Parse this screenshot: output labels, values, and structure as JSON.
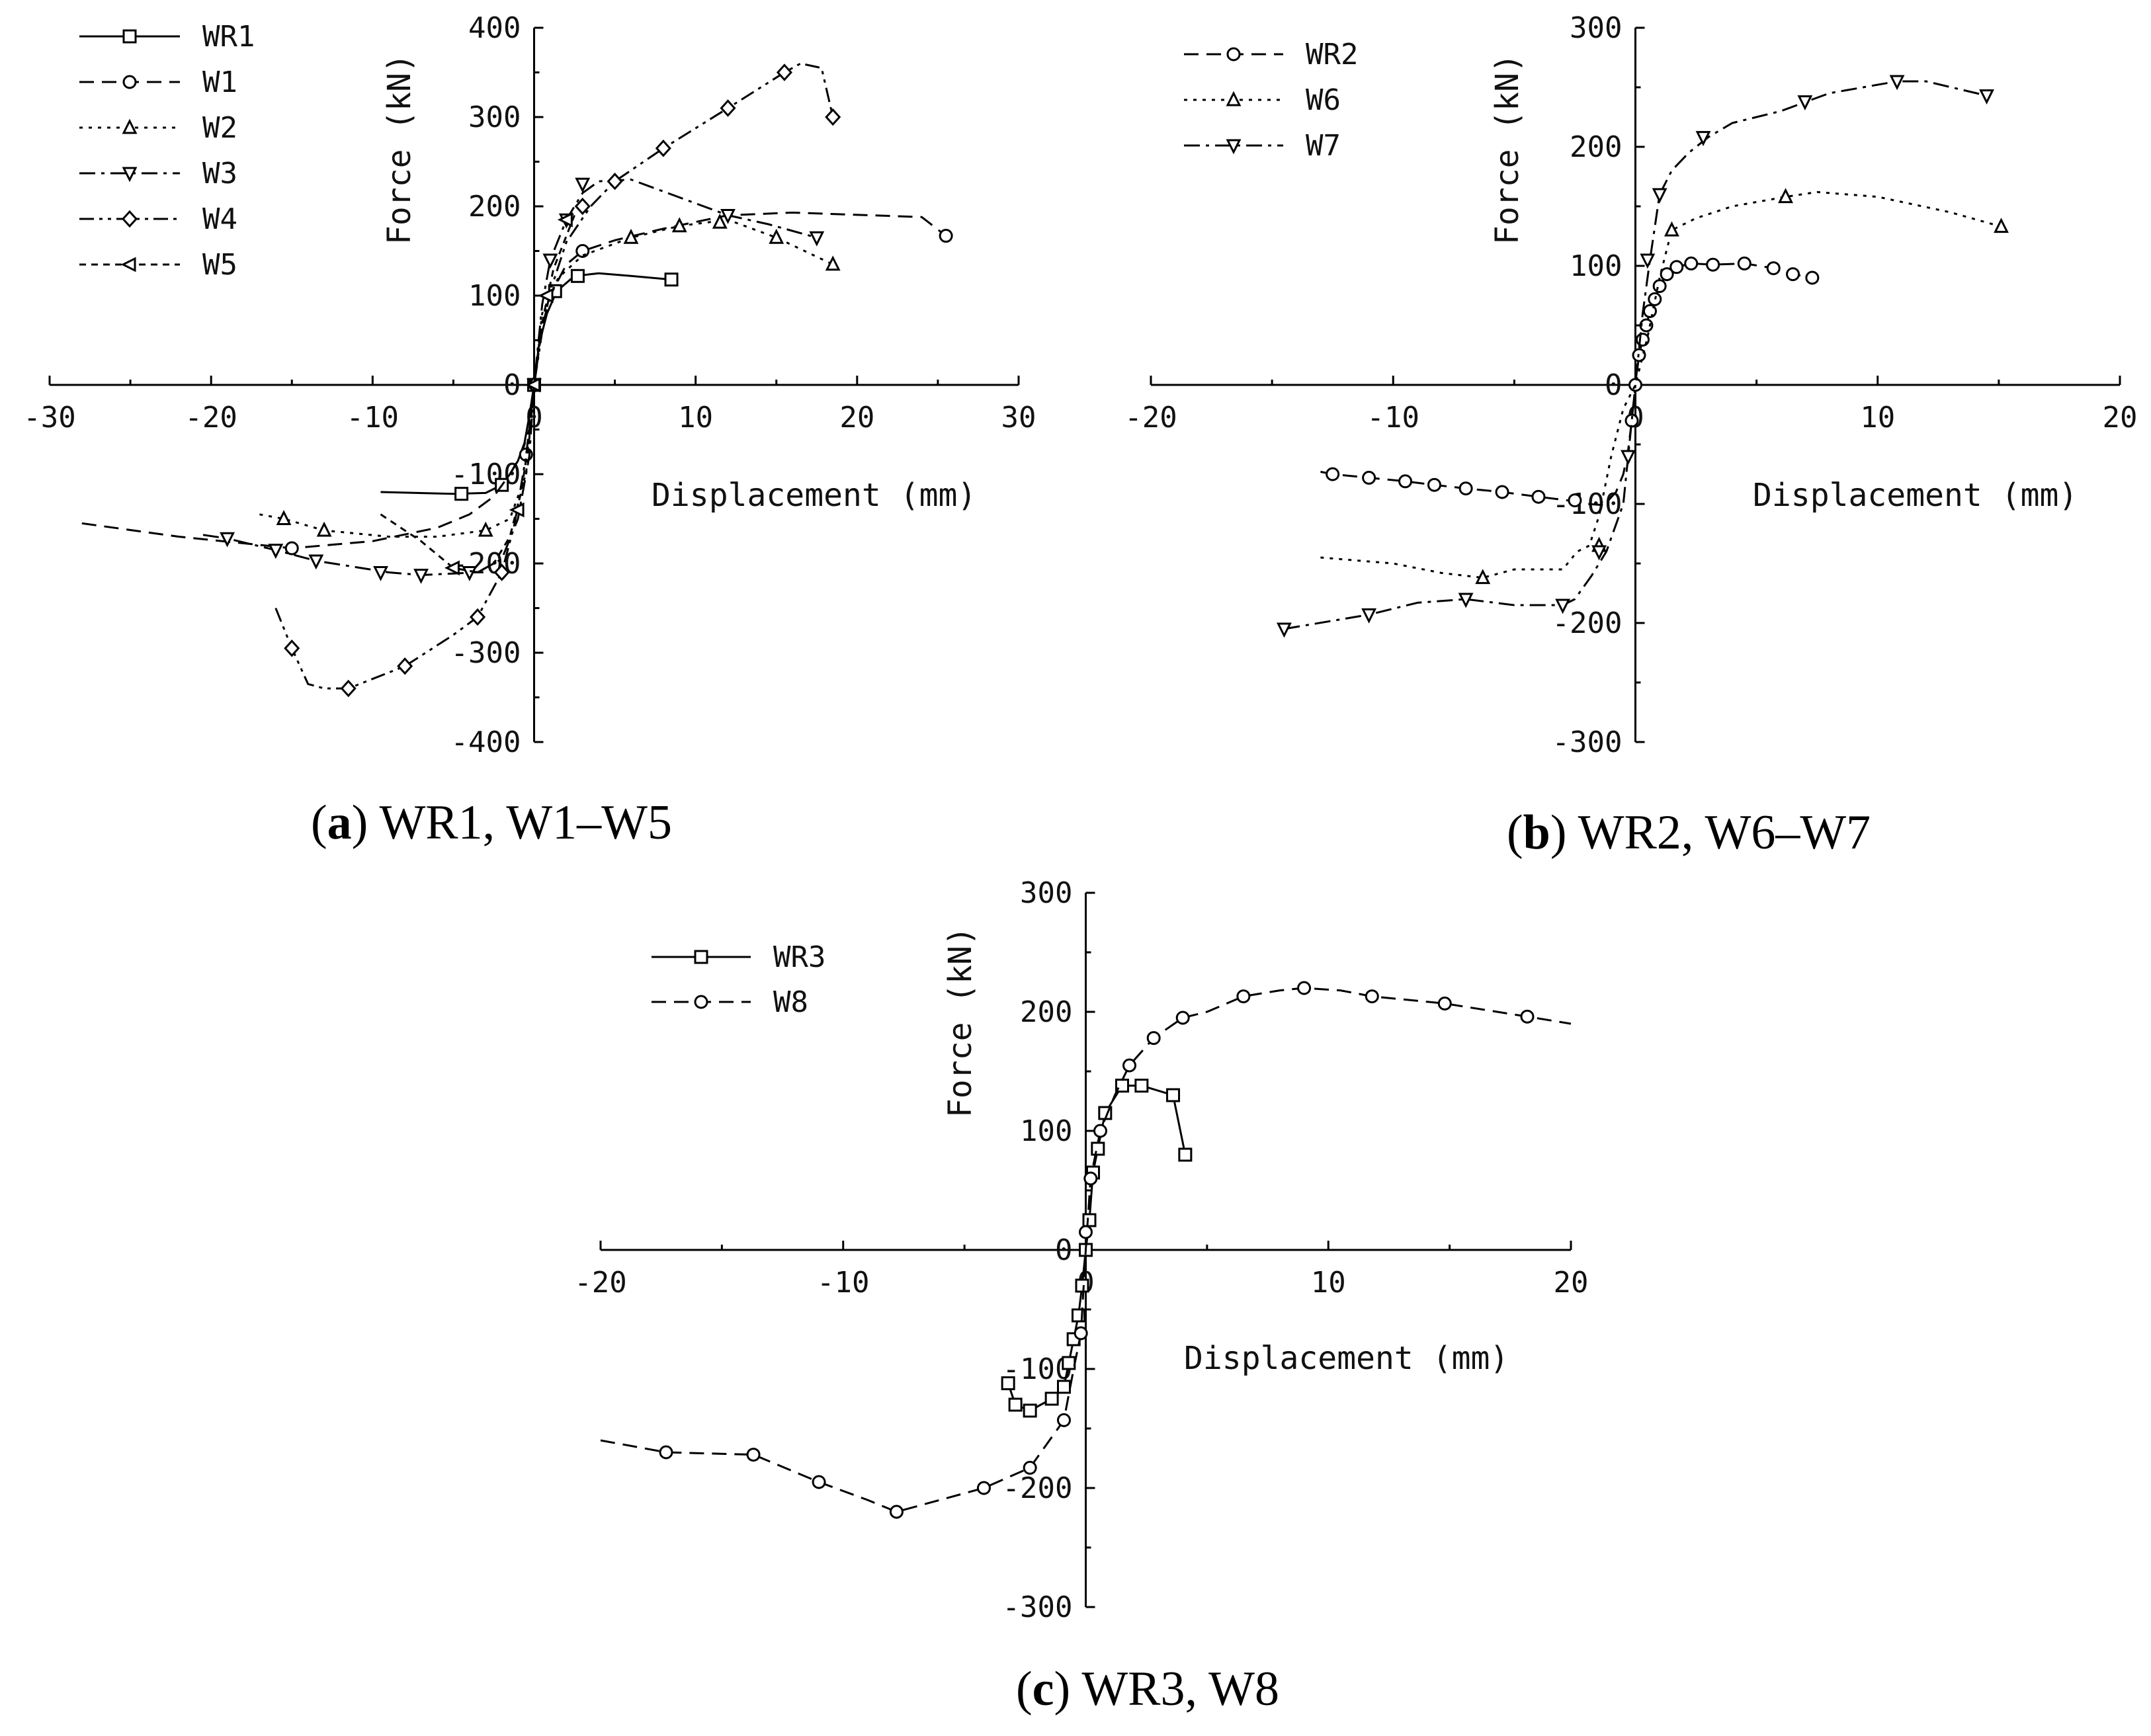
{
  "figure": {
    "colors": {
      "line": "#000000",
      "background": "#ffffff"
    }
  },
  "chart_data": [
    {
      "id": "a",
      "type": "line",
      "caption": {
        "prefix": "(",
        "letter": "a",
        "suffix": ") WR1, W1–W5"
      },
      "xlabel": "Displacement (mm)",
      "ylabel": "Force (kN)",
      "xlim": [
        -30,
        30
      ],
      "ylim": [
        -400,
        400
      ],
      "xticks": [
        -30,
        -20,
        -10,
        0,
        10,
        20,
        30
      ],
      "yticks": [
        -400,
        -300,
        -200,
        -100,
        0,
        100,
        200,
        300,
        400
      ],
      "legend_position": "top-left",
      "series": [
        {
          "name": "WR1",
          "dash": "solid",
          "marker": "square",
          "x": [
            -9.5,
            -5,
            -3,
            -2,
            -1.5,
            -1,
            -0.6,
            -0.3,
            0,
            0.3,
            0.8,
            1.4,
            2.5,
            4,
            6,
            8.5
          ],
          "y": [
            -120,
            -122,
            -121,
            -112,
            -100,
            -85,
            -65,
            -35,
            0,
            45,
            80,
            105,
            122,
            125,
            122,
            118
          ],
          "markers_x": [
            -4.5,
            -2,
            0,
            1.3,
            2.7,
            8.5
          ],
          "markers_y": [
            -122,
            -112,
            0,
            105,
            122,
            118
          ]
        },
        {
          "name": "W1",
          "dash": "dash",
          "marker": "circle",
          "x": [
            -28,
            -22,
            -15,
            -10,
            -6,
            -4,
            -2.5,
            -1.5,
            -0.8,
            -0.3,
            0,
            0.5,
            1,
            2,
            3,
            5,
            8,
            12,
            16,
            24,
            25.5
          ],
          "y": [
            -155,
            -170,
            -183,
            -175,
            -160,
            -145,
            -125,
            -100,
            -78,
            -50,
            0,
            65,
            100,
            135,
            150,
            162,
            175,
            190,
            193,
            188,
            167
          ],
          "markers_x": [
            -15,
            -0.5,
            3,
            25.5
          ],
          "markers_y": [
            -183,
            -78,
            150,
            167
          ]
        },
        {
          "name": "W2",
          "dash": "dot",
          "marker": "triangle-up",
          "x": [
            -17,
            -15.5,
            -13,
            -9,
            -6,
            -3,
            -1.5,
            -0.5,
            0,
            0.5,
            1.5,
            3,
            6,
            9,
            12,
            15,
            18.5
          ],
          "y": [
            -145,
            -150,
            -163,
            -170,
            -170,
            -163,
            -150,
            -100,
            0,
            80,
            120,
            145,
            165,
            178,
            185,
            165,
            135
          ],
          "markers_x": [
            -15.5,
            -13,
            -3,
            6,
            9,
            11.5,
            15,
            18.5
          ],
          "markers_y": [
            -150,
            -163,
            -163,
            165,
            178,
            182,
            165,
            135
          ]
        },
        {
          "name": "W3",
          "dash": "dashdot",
          "marker": "triangle-down",
          "x": [
            -20.5,
            -19,
            -16,
            -13.5,
            -9,
            -7,
            -3.5,
            -2,
            -1,
            -0.3,
            0,
            0.5,
            1,
            2,
            3,
            4,
            6,
            9,
            12,
            14.5,
            17.5
          ],
          "y": [
            -168,
            -172,
            -185,
            -197,
            -210,
            -213,
            -210,
            -195,
            -150,
            -80,
            0,
            90,
            140,
            185,
            215,
            228,
            230,
            210,
            190,
            180,
            165
          ],
          "markers_x": [
            -19,
            -16,
            -13.5,
            -9.5,
            -7,
            -4,
            0,
            1,
            2,
            3,
            12,
            17.5
          ],
          "markers_y": [
            -172,
            -185,
            -197,
            -210,
            -213,
            -210,
            0,
            140,
            185,
            225,
            190,
            165
          ]
        },
        {
          "name": "W4",
          "dash": "dashdotdot",
          "marker": "diamond",
          "x": [
            -16,
            -15,
            -14,
            -13,
            -11.5,
            -8,
            -5,
            -3.5,
            -2,
            -1.2,
            -0.5,
            0,
            0.5,
            1,
            2,
            3.5,
            5,
            8,
            12,
            15.5,
            16.5,
            17.8,
            18.5
          ],
          "y": [
            -250,
            -295,
            -335,
            -340,
            -340,
            -315,
            -280,
            -260,
            -210,
            -155,
            -80,
            0,
            60,
            105,
            160,
            200,
            228,
            265,
            310,
            350,
            360,
            355,
            300
          ],
          "markers_x": [
            -15,
            -11.5,
            -8,
            -3.5,
            -2,
            0,
            3,
            5,
            8,
            12,
            15.5,
            18.5
          ],
          "markers_y": [
            -295,
            -340,
            -315,
            -260,
            -210,
            0,
            200,
            228,
            265,
            310,
            350,
            300
          ]
        },
        {
          "name": "W5",
          "dash": "shortdash",
          "marker": "triangle-left",
          "x": [
            -9.5,
            -7,
            -5,
            -3.5,
            -2.5,
            -1.5,
            -0.8,
            -0.3,
            0,
            0.5,
            1.2,
            2.5
          ],
          "y": [
            -145,
            -175,
            -205,
            -210,
            -200,
            -170,
            -120,
            -60,
            0,
            70,
            130,
            190
          ],
          "markers_x": [
            -5,
            -1,
            0,
            0.8,
            2
          ],
          "markers_y": [
            -205,
            -140,
            0,
            100,
            185
          ]
        }
      ]
    },
    {
      "id": "b",
      "type": "line",
      "caption": {
        "prefix": "(",
        "letter": "b",
        "suffix": ") WR2, W6–W7"
      },
      "xlabel": "Displacement (mm)",
      "ylabel": "Force (kN)",
      "xlim": [
        -20,
        20
      ],
      "ylim": [
        -300,
        300
      ],
      "xticks": [
        -20,
        -10,
        0,
        10,
        20
      ],
      "yticks": [
        -300,
        -200,
        -100,
        0,
        100,
        200,
        300
      ],
      "legend_position": "top-left",
      "series": [
        {
          "name": "WR2",
          "dash": "dash",
          "marker": "circle",
          "x": [
            -13,
            -12.5,
            -11,
            -9.5,
            -8.3,
            -7,
            -5.5,
            -4,
            -2.8,
            -2,
            -1.3,
            -0.8,
            -0.5,
            -0.3,
            -0.15,
            0,
            0.15,
            0.3,
            0.45,
            0.6,
            0.8,
            1,
            1.3,
            1.7,
            2.3,
            3.2,
            4.5,
            5.7,
            6.5,
            7.3
          ],
          "y": [
            -73,
            -75,
            -78,
            -81,
            -84,
            -87,
            -90,
            -94,
            -97,
            -100,
            -101,
            -90,
            -75,
            -55,
            -30,
            0,
            25,
            38,
            50,
            62,
            72,
            83,
            93,
            99,
            102,
            101,
            102,
            98,
            93,
            90
          ],
          "markers_x": [
            -12.5,
            -11,
            -9.5,
            -8.3,
            -7,
            -5.5,
            -4,
            -2.5,
            -0.15,
            0,
            0.15,
            0.3,
            0.45,
            0.6,
            0.8,
            1,
            1.3,
            1.7,
            2.3,
            3.2,
            4.5,
            5.7,
            6.5,
            7.3
          ],
          "markers_y": [
            -75,
            -78,
            -81,
            -84,
            -87,
            -90,
            -94,
            -97,
            -30,
            0,
            25,
            38,
            50,
            62,
            72,
            83,
            93,
            99,
            102,
            101,
            102,
            98,
            93,
            90
          ]
        },
        {
          "name": "W6",
          "dash": "dot",
          "marker": "triangle-up",
          "x": [
            -13,
            -10,
            -8,
            -6.3,
            -5,
            -3,
            -2.4,
            -1.9,
            -1.5,
            -1,
            -0.5,
            0,
            0.5,
            1,
            1.5,
            2.5,
            4,
            6.2,
            7.5,
            10,
            13,
            15.1
          ],
          "y": [
            -145,
            -150,
            -158,
            -162,
            -155,
            -155,
            -140,
            -135,
            -110,
            -60,
            -20,
            0,
            40,
            90,
            130,
            140,
            150,
            158,
            162,
            158,
            145,
            133
          ],
          "markers_x": [
            -6.3,
            -1.5,
            1.5,
            6.2,
            15.1
          ],
          "markers_y": [
            -162,
            -135,
            130,
            158,
            133
          ]
        },
        {
          "name": "W7",
          "dash": "dashdot",
          "marker": "triangle-down",
          "x": [
            -14.5,
            -11,
            -9,
            -7,
            -5,
            -3,
            -2.5,
            -1.8,
            -1.2,
            -0.5,
            0,
            0.3,
            0.6,
            1,
            1.5,
            2.2,
            3,
            4,
            6,
            8,
            10.8,
            12,
            14.5
          ],
          "y": [
            -205,
            -193,
            -183,
            -180,
            -185,
            -185,
            -180,
            -160,
            -140,
            -100,
            0,
            60,
            105,
            160,
            180,
            195,
            208,
            220,
            230,
            245,
            255,
            255,
            243
          ],
          "markers_x": [
            -14.5,
            -11,
            -7,
            -3,
            -1.5,
            -0.3,
            0.5,
            1,
            2.8,
            7,
            10.8,
            14.5
          ],
          "markers_y": [
            -205,
            -193,
            -180,
            -185,
            -140,
            -60,
            105,
            160,
            208,
            238,
            255,
            243
          ]
        }
      ]
    },
    {
      "id": "c",
      "type": "line",
      "caption": {
        "prefix": "(",
        "letter": "c",
        "suffix": ") WR3, W8"
      },
      "xlabel": "Displacement (mm)",
      "ylabel": "Force (kN)",
      "xlim": [
        -20,
        20
      ],
      "ylim": [
        -300,
        300
      ],
      "xticks": [
        -20,
        -10,
        0,
        10,
        20
      ],
      "yticks": [
        -300,
        -200,
        -100,
        0,
        100,
        200,
        300
      ],
      "legend_position": "top-left",
      "series": [
        {
          "name": "WR3",
          "dash": "solid",
          "marker": "square",
          "x": [
            -3.2,
            -2.9,
            -2.3,
            -1.4,
            -0.9,
            -0.7,
            -0.5,
            -0.3,
            -0.15,
            0,
            0.15,
            0.3,
            0.5,
            0.8,
            1.5,
            2.3,
            3.6,
            4.1
          ],
          "y": [
            -112,
            -130,
            -135,
            -125,
            -115,
            -95,
            -75,
            -55,
            -30,
            0,
            25,
            65,
            85,
            115,
            138,
            138,
            130,
            80
          ],
          "markers_x": [
            -3.2,
            -2.9,
            -2.3,
            -1.4,
            -0.9,
            -0.7,
            -0.5,
            -0.3,
            -0.15,
            0,
            0.15,
            0.3,
            0.5,
            0.8,
            1.5,
            2.3,
            3.6,
            4.1
          ],
          "markers_y": [
            -112,
            -130,
            -135,
            -125,
            -115,
            -95,
            -75,
            -55,
            -30,
            0,
            25,
            65,
            85,
            115,
            138,
            138,
            130,
            80
          ]
        },
        {
          "name": "W8",
          "dash": "dash",
          "marker": "circle",
          "x": [
            -20,
            -17.3,
            -13.7,
            -11,
            -9,
            -7.8,
            -6,
            -4.2,
            -2.3,
            -0.9,
            -0.5,
            -0.2,
            0,
            0.2,
            0.6,
            1.2,
            1.8,
            2.8,
            4,
            5,
            6.5,
            8,
            9,
            10.5,
            11.8,
            14.8,
            18.2,
            20
          ],
          "y": [
            -160,
            -170,
            -172,
            -195,
            -210,
            -220,
            -210,
            -200,
            -183,
            -143,
            -100,
            -70,
            0,
            60,
            100,
            130,
            155,
            178,
            195,
            200,
            213,
            218,
            220,
            218,
            213,
            207,
            196,
            190
          ],
          "markers_x": [
            -17.3,
            -13.7,
            -11,
            -7.8,
            -4.2,
            -2.3,
            -0.9,
            -0.2,
            0,
            0.2,
            0.6,
            1.8,
            2.8,
            4,
            6.5,
            9,
            11.8,
            14.8,
            18.2
          ],
          "markers_y": [
            -170,
            -172,
            -195,
            -220,
            -200,
            -183,
            -143,
            -70,
            15,
            60,
            100,
            155,
            178,
            195,
            213,
            220,
            213,
            207,
            196
          ]
        }
      ]
    }
  ]
}
